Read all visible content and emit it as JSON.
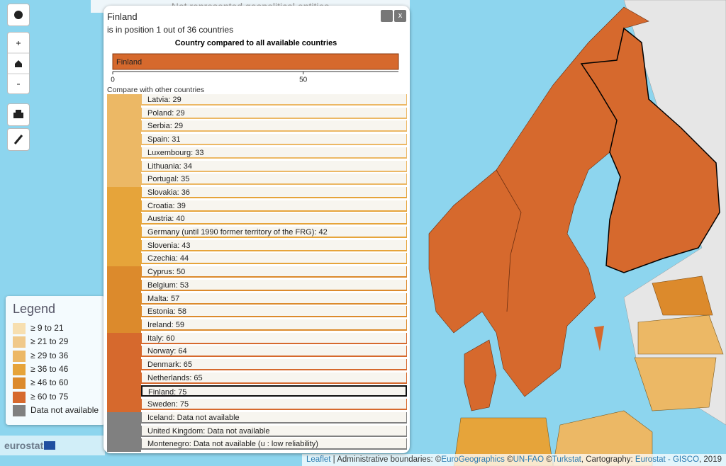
{
  "top_panel": {
    "title": "Not represented geopolitical entities"
  },
  "popup": {
    "title": "Finland",
    "subtitle": "is in position 1 out of 36 countries",
    "comparison_chart": {
      "type": "bar",
      "title": "Country compared to all available countries",
      "categories": [
        "Finland"
      ],
      "values": [
        75
      ],
      "color": "#d6692d",
      "xlim": [
        0,
        75
      ],
      "xticks": [
        0,
        50
      ]
    },
    "compare_label": "Compare with other countries",
    "highlight": "Finland: 75",
    "groups": [
      {
        "color": "#ecb865",
        "items": [
          "Latvia: 29",
          "Poland: 29",
          "Serbia: 29",
          "Spain: 31",
          "Luxembourg: 33",
          "Lithuania: 34",
          "Portugal: 35"
        ]
      },
      {
        "color": "#e6a43a",
        "items": [
          "Slovakia: 36",
          "Croatia: 39",
          "Austria: 40",
          "Germany (until 1990 former territory of the FRG): 42",
          "Slovenia: 43",
          "Czechia: 44"
        ]
      },
      {
        "color": "#dc8a2c",
        "items": [
          "Cyprus: 50",
          "Belgium: 53",
          "Malta: 57",
          "Estonia: 58",
          "Ireland: 59"
        ]
      },
      {
        "color": "#d6692d",
        "items": [
          "Italy: 60",
          "Norway: 64",
          "Denmark: 65",
          "Netherlands: 65",
          "Finland: 75",
          "Sweden: 75"
        ]
      },
      {
        "color": "#808080",
        "items": [
          "Iceland: Data not available",
          "United Kingdom: Data not available",
          "Montenegro: Data not available (u : low reliability)"
        ]
      }
    ]
  },
  "legend": {
    "title": "Legend",
    "items": [
      {
        "label": "≥ 9 to 21",
        "color": "#f7dfb0"
      },
      {
        "label": "≥ 21 to 29",
        "color": "#f0c98a"
      },
      {
        "label": "≥ 29 to 36",
        "color": "#ecb865"
      },
      {
        "label": "≥ 36 to 46",
        "color": "#e6a43a"
      },
      {
        "label": "≥ 46 to 60",
        "color": "#dc8a2c"
      },
      {
        "label": "≥ 60 to 75",
        "color": "#d6692d"
      },
      {
        "label": "Data not available",
        "color": "#808080"
      }
    ]
  },
  "logo": "eurostat",
  "attribution": [
    {
      "text": "Leaflet",
      "link": true
    },
    {
      "text": " | Administrative boundaries: ©"
    },
    {
      "text": "EuroGeographics",
      "link": true
    },
    {
      "text": " ©"
    },
    {
      "text": "UN-FAO",
      "link": true
    },
    {
      "text": " ©"
    },
    {
      "text": "Turkstat",
      "link": true
    },
    {
      "text": ", Cartography: "
    },
    {
      "text": "Eurostat - GISCO",
      "link": true
    },
    {
      "text": ", 2019"
    }
  ]
}
